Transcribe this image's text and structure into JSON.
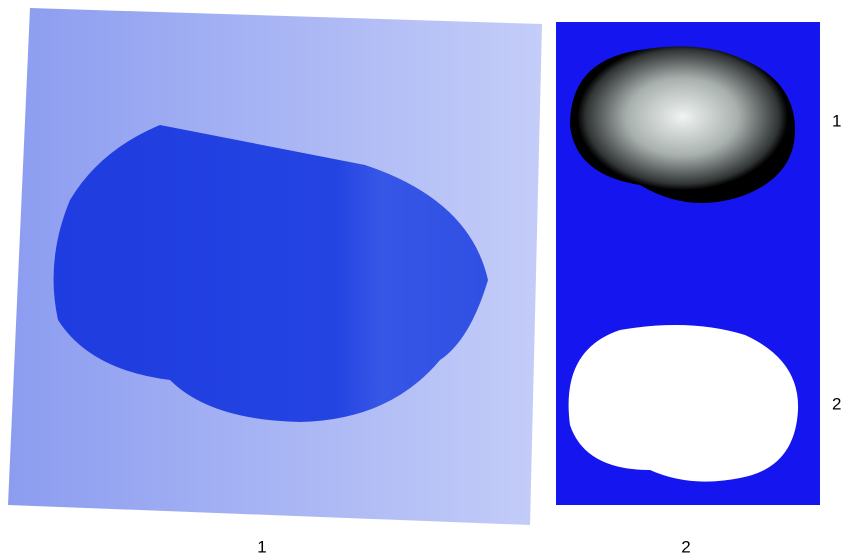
{
  "panels": [
    {
      "label": "1"
    },
    {
      "label": "2"
    }
  ],
  "row_labels": [
    "1",
    "2"
  ]
}
